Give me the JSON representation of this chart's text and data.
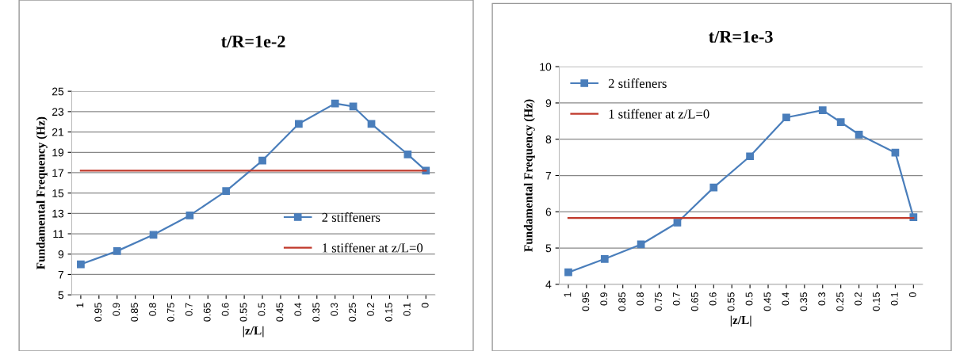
{
  "chart_data": [
    {
      "type": "line",
      "title": "t/R=1e-2",
      "xlabel": "|z/L|",
      "ylabel": "Fundamental Frequency (Hz)",
      "categories": [
        "1",
        "0.95",
        "0.9",
        "0.85",
        "0.8",
        "0.75",
        "0.7",
        "0.65",
        "0.6",
        "0.55",
        "0.5",
        "0.45",
        "0.4",
        "0.35",
        "0.3",
        "0.25",
        "0.2",
        "0.15",
        "0.1",
        "0"
      ],
      "series": [
        {
          "name": "2 stiffeners",
          "color": "#4a7ebb",
          "marker": "square",
          "values": [
            8.0,
            null,
            9.3,
            null,
            10.9,
            null,
            12.8,
            null,
            15.2,
            null,
            18.2,
            null,
            21.8,
            null,
            23.8,
            23.5,
            21.8,
            null,
            18.8,
            17.2
          ]
        },
        {
          "name": "1 stiffener at z/L=0",
          "color": "#c0392b",
          "marker": "none",
          "values": [
            17.2,
            17.2,
            17.2,
            17.2,
            17.2,
            17.2,
            17.2,
            17.2,
            17.2,
            17.2,
            17.2,
            17.2,
            17.2,
            17.2,
            17.2,
            17.2,
            17.2,
            17.2,
            17.2,
            17.2
          ]
        }
      ],
      "ylim": [
        5,
        25
      ],
      "yticks": [
        5,
        7,
        9,
        11,
        13,
        15,
        17,
        19,
        21,
        23,
        25
      ],
      "grid": "y",
      "legend": "right"
    },
    {
      "type": "line",
      "title": "t/R=1e-3",
      "xlabel": "|z/L|",
      "ylabel": "Fundamental Frequency (Hz)",
      "categories": [
        "1",
        "0.95",
        "0.9",
        "0.85",
        "0.8",
        "0.75",
        "0.7",
        "0.65",
        "0.6",
        "0.55",
        "0.5",
        "0.45",
        "0.4",
        "0.35",
        "0.3",
        "0.25",
        "0.2",
        "0.15",
        "0.1",
        "0"
      ],
      "series": [
        {
          "name": "2 stiffeners",
          "color": "#4a7ebb",
          "marker": "square",
          "values": [
            4.33,
            null,
            4.7,
            null,
            5.1,
            null,
            5.7,
            null,
            6.67,
            null,
            7.53,
            null,
            8.6,
            null,
            8.8,
            8.47,
            8.13,
            null,
            7.63,
            5.85
          ]
        },
        {
          "name": "1 stiffener at z/L=0",
          "color": "#c0392b",
          "marker": "none",
          "values": [
            5.83,
            5.83,
            5.83,
            5.83,
            5.83,
            5.83,
            5.83,
            5.83,
            5.83,
            5.83,
            5.83,
            5.83,
            5.83,
            5.83,
            5.83,
            5.83,
            5.83,
            5.83,
            5.83,
            5.83
          ]
        }
      ],
      "ylim": [
        4,
        10
      ],
      "yticks": [
        4,
        5,
        6,
        7,
        8,
        9,
        10
      ],
      "grid": "y",
      "legend": "upper left"
    }
  ]
}
